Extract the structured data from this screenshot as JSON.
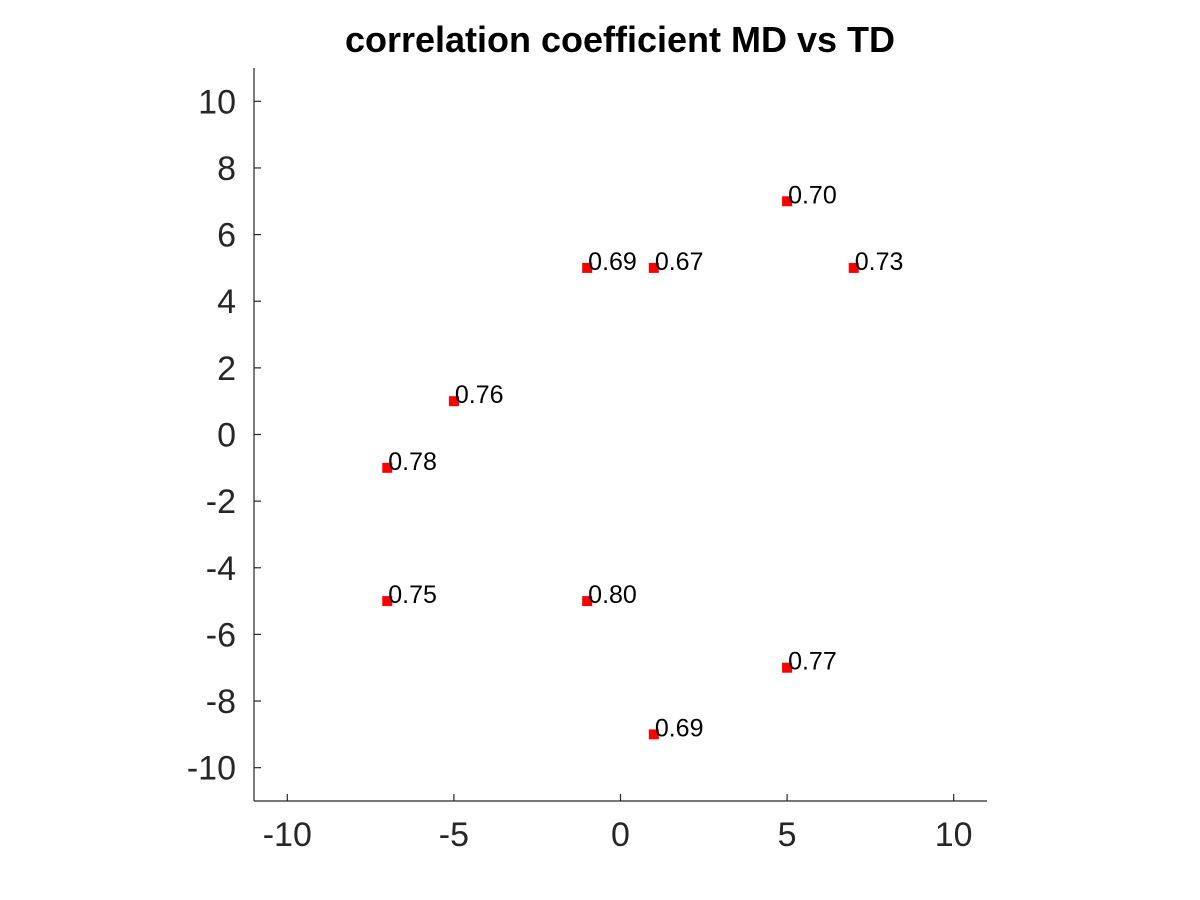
{
  "chart_data": {
    "type": "scatter",
    "title": "correlation coefficient MD vs TD",
    "xlabel": "",
    "ylabel": "",
    "xlim": [
      -11,
      11
    ],
    "ylim": [
      -11,
      11
    ],
    "x_ticks": [
      -10,
      -5,
      0,
      5,
      10
    ],
    "y_ticks": [
      -10,
      -8,
      -6,
      -4,
      -2,
      0,
      2,
      4,
      6,
      8,
      10
    ],
    "grid": false,
    "marker": "square",
    "marker_color": "#ff0000",
    "points": [
      {
        "x": 5,
        "y": 7,
        "label": "0.70"
      },
      {
        "x": -1,
        "y": 5,
        "label": "0.69"
      },
      {
        "x": 1,
        "y": 5,
        "label": "0.67"
      },
      {
        "x": 7,
        "y": 5,
        "label": "0.73"
      },
      {
        "x": -5,
        "y": 1,
        "label": "0.76"
      },
      {
        "x": -7,
        "y": -1,
        "label": "0.78"
      },
      {
        "x": -7,
        "y": -5,
        "label": "0.75"
      },
      {
        "x": -1,
        "y": -5,
        "label": "0.80"
      },
      {
        "x": 5,
        "y": -7,
        "label": "0.77"
      },
      {
        "x": 1,
        "y": -9,
        "label": "0.69"
      }
    ]
  }
}
